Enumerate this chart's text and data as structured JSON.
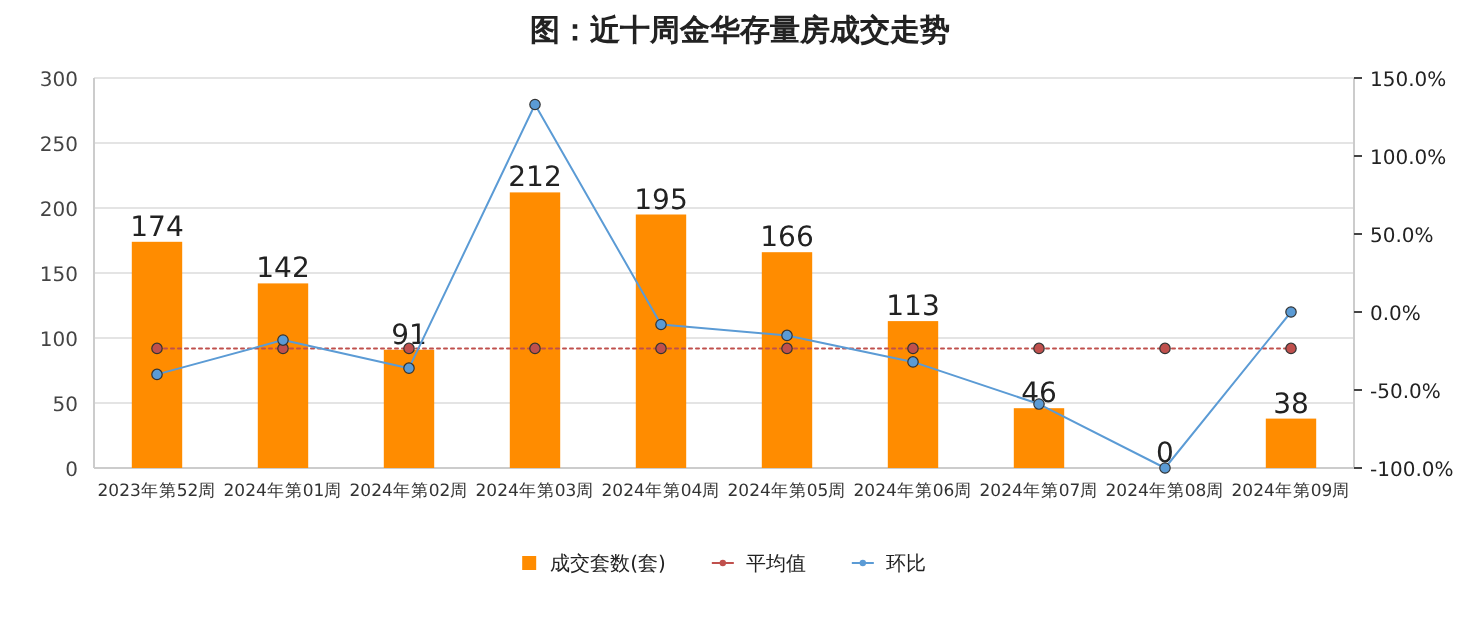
{
  "chart_data": {
    "type": "bar",
    "title": "图：近十周金华存量房成交走势",
    "categories": [
      "2023年第52周",
      "2024年第01周",
      "2024年第02周",
      "2024年第03周",
      "2024年第04周",
      "2024年第05周",
      "2024年第06周",
      "2024年第07周",
      "2024年第08周",
      "2024年第09周"
    ],
    "series": [
      {
        "name": "成交套数(套)",
        "color": "#ff8c00",
        "values": [
          174,
          142,
          91,
          212,
          195,
          166,
          113,
          46,
          0,
          38
        ],
        "value_labels": [
          "174",
          "142",
          "91",
          "212",
          "195",
          "166",
          "113",
          "46",
          "0",
          "38"
        ]
      },
      {
        "name": "平均值",
        "type": "line",
        "color": "#c0504d",
        "line_style": "dotted",
        "marker": "circle",
        "values": [
          92,
          92,
          92,
          92,
          92,
          92,
          92,
          92,
          92,
          92
        ]
      },
      {
        "name": "环比",
        "type": "line",
        "axis": "y2",
        "color": "#5b9bd5",
        "line_style": "solid",
        "marker": "circle",
        "values": [
          -40,
          -18,
          -36,
          133,
          -8,
          -15,
          -32,
          -59,
          -100,
          0
        ]
      }
    ],
    "ylim": [
      0,
      300
    ],
    "yticks": [
      0,
      50,
      100,
      150,
      200,
      250,
      300
    ],
    "y2lim": [
      -100,
      150
    ],
    "y2ticks": [
      {
        "value": -100,
        "label": "-100.0%"
      },
      {
        "value": -50,
        "label": "-50.0%"
      },
      {
        "value": 0,
        "label": "0.0%"
      },
      {
        "value": 50,
        "label": "50.0%"
      },
      {
        "value": 100,
        "label": "100.0%"
      },
      {
        "value": 150,
        "label": "150.0%"
      }
    ],
    "grid": "y",
    "legend": "bottom"
  }
}
